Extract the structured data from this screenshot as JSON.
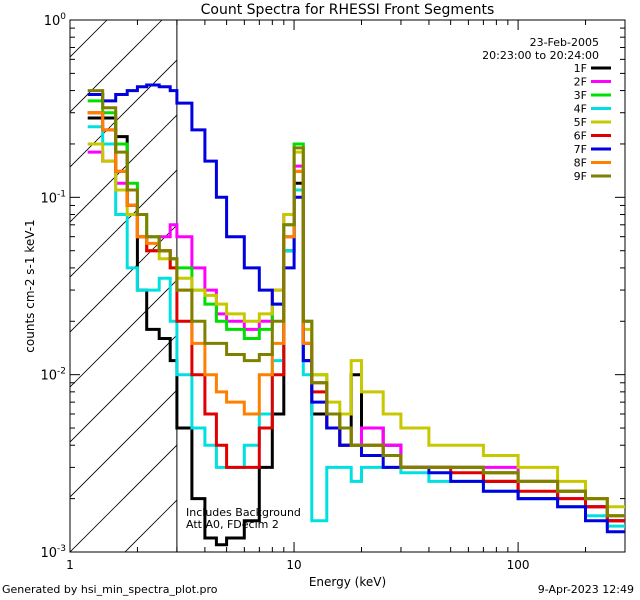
{
  "chart_data": {
    "type": "line",
    "title": "Count Spectra for RHESSI Front Segments",
    "xlabel": "Energy (keV)",
    "ylabel": "counts cm-2 s-1 keV-1",
    "xscale": "log",
    "yscale": "log",
    "xlim": [
      1,
      300
    ],
    "ylim": [
      0.001,
      1
    ],
    "x_ticks": [
      {
        "value": 1,
        "label": "1"
      },
      {
        "value": 10,
        "label": "10"
      },
      {
        "value": 100,
        "label": "100"
      }
    ],
    "y_ticks": [
      {
        "value": 1,
        "base": "10",
        "exp": "0"
      },
      {
        "value": 0.1,
        "base": "10",
        "exp": "-1"
      },
      {
        "value": 0.01,
        "base": "10",
        "exp": "-2"
      },
      {
        "value": 0.001,
        "base": "10",
        "exp": "-3"
      }
    ],
    "date": "23-Feb-2005",
    "time_range": "20:23:00 to 20:24:00",
    "shaded_region_max_kev": 3,
    "annotations": [
      "Includes Background",
      "Att A0, FDecim 2"
    ],
    "series": [
      {
        "name": "1F",
        "color": "#000000",
        "x": [
          1.2,
          1.4,
          1.6,
          1.8,
          2,
          2.2,
          2.5,
          2.8,
          3,
          3.5,
          4,
          4.5,
          5,
          6,
          7,
          8,
          9,
          10,
          11,
          12,
          14,
          16,
          18,
          20,
          25,
          30,
          40,
          50,
          70,
          100,
          150,
          200,
          250
        ],
        "values": [
          0.28,
          0.28,
          0.22,
          0.09,
          0.03,
          0.018,
          0.016,
          0.012,
          0.005,
          0.002,
          0.0012,
          0.0011,
          0.0012,
          0.0015,
          0.003,
          0.006,
          0.05,
          0.12,
          0.012,
          0.006,
          0.005,
          0.004,
          0.01,
          0.005,
          0.004,
          0.003,
          0.003,
          0.003,
          0.0025,
          0.002,
          0.0022,
          0.0018,
          0.0015
        ]
      },
      {
        "name": "2F",
        "color": "#ff00ff",
        "x": [
          1.2,
          1.4,
          1.6,
          1.8,
          2,
          2.2,
          2.5,
          2.8,
          3,
          3.5,
          4,
          4.5,
          5,
          6,
          7,
          8,
          9,
          10,
          11,
          12,
          14,
          16,
          18,
          20,
          25,
          30,
          40,
          50,
          70,
          100,
          150,
          200,
          250
        ],
        "values": [
          0.18,
          0.16,
          0.12,
          0.09,
          0.06,
          0.05,
          0.06,
          0.07,
          0.06,
          0.04,
          0.03,
          0.022,
          0.02,
          0.018,
          0.02,
          0.03,
          0.08,
          0.15,
          0.015,
          0.009,
          0.006,
          0.005,
          0.004,
          0.005,
          0.004,
          0.003,
          0.003,
          0.003,
          0.003,
          0.0025,
          0.002,
          0.0018,
          0.0015
        ]
      },
      {
        "name": "3F",
        "color": "#00e000",
        "x": [
          1.2,
          1.4,
          1.6,
          1.8,
          2,
          2.2,
          2.5,
          2.8,
          3,
          3.5,
          4,
          4.5,
          5,
          6,
          7,
          8,
          9,
          10,
          11,
          12,
          14,
          16,
          18,
          20,
          25,
          30,
          40,
          50,
          70,
          100,
          150,
          200,
          250
        ],
        "values": [
          0.35,
          0.3,
          0.2,
          0.12,
          0.08,
          0.06,
          0.05,
          0.045,
          0.04,
          0.03,
          0.025,
          0.02,
          0.018,
          0.016,
          0.018,
          0.025,
          0.07,
          0.2,
          0.02,
          0.01,
          0.006,
          0.005,
          0.004,
          0.004,
          0.0035,
          0.003,
          0.003,
          0.003,
          0.0028,
          0.0025,
          0.0022,
          0.002,
          0.0016
        ]
      },
      {
        "name": "4F",
        "color": "#00e0e0",
        "x": [
          1.2,
          1.4,
          1.6,
          1.8,
          2,
          2.2,
          2.5,
          2.8,
          3,
          3.5,
          4,
          4.5,
          5,
          6,
          7,
          8,
          9,
          10,
          11,
          12,
          14,
          16,
          18,
          20,
          25,
          30,
          40,
          50,
          70,
          100,
          150,
          200,
          250
        ],
        "values": [
          0.25,
          0.2,
          0.08,
          0.04,
          0.03,
          0.03,
          0.035,
          0.02,
          0.01,
          0.005,
          0.004,
          0.003,
          0.003,
          0.004,
          0.006,
          0.012,
          0.05,
          0.11,
          0.01,
          0.0015,
          0.003,
          0.003,
          0.0025,
          0.003,
          0.003,
          0.0028,
          0.0025,
          0.0025,
          0.0022,
          0.002,
          0.0018,
          0.0016,
          0.0014
        ]
      },
      {
        "name": "5F",
        "color": "#c8c800",
        "x": [
          1.2,
          1.4,
          1.6,
          1.8,
          2,
          2.2,
          2.5,
          2.8,
          3,
          3.5,
          4,
          4.5,
          5,
          6,
          7,
          8,
          9,
          10,
          11,
          12,
          14,
          16,
          18,
          20,
          25,
          30,
          40,
          50,
          70,
          100,
          150,
          200,
          250
        ],
        "values": [
          0.2,
          0.16,
          0.11,
          0.08,
          0.06,
          0.05,
          0.045,
          0.04,
          0.035,
          0.03,
          0.028,
          0.025,
          0.022,
          0.02,
          0.022,
          0.03,
          0.08,
          0.18,
          0.018,
          0.01,
          0.007,
          0.006,
          0.012,
          0.008,
          0.006,
          0.005,
          0.004,
          0.004,
          0.0035,
          0.003,
          0.0025,
          0.002,
          0.0018
        ]
      },
      {
        "name": "6F",
        "color": "#e00000",
        "x": [
          1.2,
          1.4,
          1.6,
          1.8,
          2,
          2.2,
          2.5,
          2.8,
          3,
          3.5,
          4,
          4.5,
          5,
          6,
          7,
          8,
          9,
          10,
          11,
          12,
          14,
          16,
          18,
          20,
          25,
          30,
          40,
          50,
          70,
          100,
          150,
          200,
          250
        ],
        "values": [
          0.3,
          0.24,
          0.14,
          0.09,
          0.06,
          0.05,
          0.05,
          0.04,
          0.02,
          0.01,
          0.006,
          0.004,
          0.003,
          0.003,
          0.005,
          0.01,
          0.06,
          0.14,
          0.015,
          0.008,
          0.005,
          0.004,
          0.004,
          0.004,
          0.0035,
          0.003,
          0.003,
          0.0028,
          0.0025,
          0.0022,
          0.002,
          0.0018,
          0.0015
        ]
      },
      {
        "name": "7F",
        "color": "#0000e0",
        "x": [
          1.2,
          1.4,
          1.6,
          1.8,
          2,
          2.2,
          2.5,
          2.8,
          3,
          3.5,
          4,
          4.5,
          5,
          6,
          7,
          8,
          9,
          10,
          11,
          12,
          14,
          16,
          18,
          20,
          25,
          30,
          40,
          50,
          70,
          100,
          150,
          200,
          250
        ],
        "values": [
          0.38,
          0.35,
          0.38,
          0.4,
          0.42,
          0.43,
          0.42,
          0.4,
          0.34,
          0.24,
          0.16,
          0.1,
          0.06,
          0.04,
          0.03,
          0.025,
          0.04,
          0.1,
          0.012,
          0.007,
          0.005,
          0.004,
          0.004,
          0.0035,
          0.003,
          0.003,
          0.0028,
          0.0025,
          0.0022,
          0.002,
          0.0018,
          0.0015,
          0.0013
        ]
      },
      {
        "name": "8F",
        "color": "#ff8000",
        "x": [
          1.2,
          1.4,
          1.6,
          1.8,
          2,
          2.2,
          2.5,
          2.8,
          3,
          3.5,
          4,
          4.5,
          5,
          6,
          7,
          8,
          9,
          10,
          11,
          12,
          14,
          16,
          18,
          20,
          25,
          30,
          40,
          50,
          70,
          100,
          150,
          200,
          250
        ],
        "values": [
          0.3,
          0.24,
          0.14,
          0.09,
          0.06,
          0.055,
          0.05,
          0.045,
          0.03,
          0.015,
          0.01,
          0.008,
          0.007,
          0.006,
          0.01,
          0.015,
          0.06,
          0.14,
          0.015,
          0.009,
          0.006,
          0.005,
          0.004,
          0.004,
          0.0035,
          0.003,
          0.003,
          0.003,
          0.0028,
          0.0025,
          0.0022,
          0.002,
          0.0016
        ]
      },
      {
        "name": "9F",
        "color": "#808000",
        "x": [
          1.2,
          1.4,
          1.6,
          1.8,
          2,
          2.2,
          2.5,
          2.8,
          3,
          3.5,
          4,
          4.5,
          5,
          6,
          7,
          8,
          9,
          10,
          11,
          12,
          14,
          16,
          18,
          20,
          25,
          30,
          40,
          50,
          70,
          100,
          150,
          200,
          250
        ],
        "values": [
          0.4,
          0.32,
          0.18,
          0.11,
          0.08,
          0.06,
          0.05,
          0.045,
          0.03,
          0.02,
          0.015,
          0.015,
          0.013,
          0.012,
          0.013,
          0.02,
          0.07,
          0.19,
          0.02,
          0.009,
          0.006,
          0.005,
          0.004,
          0.004,
          0.0035,
          0.003,
          0.003,
          0.003,
          0.0028,
          0.0025,
          0.0022,
          0.002,
          0.0016
        ]
      }
    ]
  },
  "footer": {
    "generated_by": "Generated by hsi_min_spectra_plot.pro",
    "timestamp": "9-Apr-2023 12:49"
  }
}
